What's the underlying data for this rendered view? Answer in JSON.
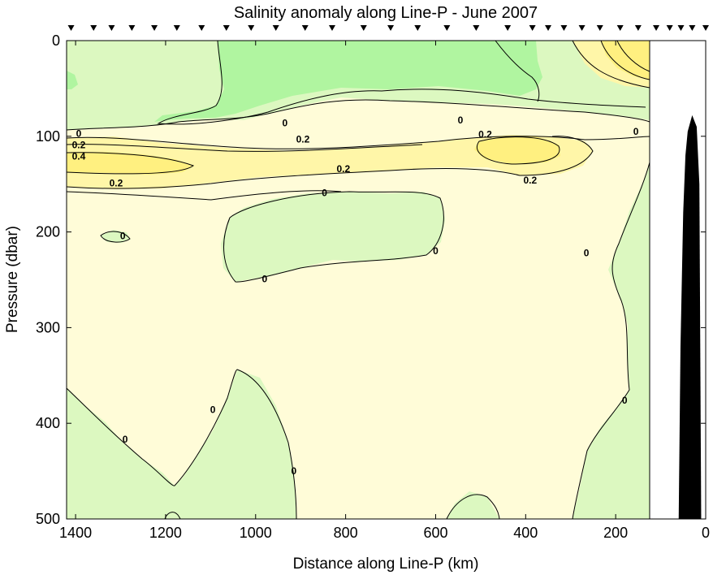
{
  "chart_data": {
    "type": "contour",
    "title": "Salinity anomaly along Line-P - June 2007",
    "xlabel": "Distance along Line-P (km)",
    "ylabel": "Pressure (dbar)",
    "xlim": [
      1420,
      0
    ],
    "ylim": [
      500,
      0
    ],
    "x_ticks": [
      "1400",
      "1200",
      "1000",
      "800",
      "600",
      "400",
      "200",
      "0"
    ],
    "y_ticks": [
      "0",
      "100",
      "200",
      "300",
      "400",
      "500"
    ],
    "x_tick_values": [
      1400,
      1200,
      1000,
      800,
      600,
      400,
      200,
      0
    ],
    "y_tick_values": [
      0,
      100,
      200,
      300,
      400,
      500
    ],
    "station_markers_km": [
      1410,
      1360,
      1320,
      1275,
      1225,
      1175,
      1120,
      1065,
      1010,
      955,
      890,
      830,
      760,
      700,
      640,
      575,
      510,
      440,
      385,
      350,
      315,
      275,
      235,
      190,
      150,
      110,
      80,
      55,
      30,
      0
    ],
    "data_coverage_limit_km": 125,
    "bathymetry": {
      "fill": "black",
      "depths": [
        [
          60,
          500
        ],
        [
          56,
          320
        ],
        [
          50,
          180
        ],
        [
          45,
          120
        ],
        [
          40,
          95
        ],
        [
          30,
          78
        ],
        [
          20,
          90
        ],
        [
          14,
          150
        ],
        [
          10,
          500
        ]
      ]
    },
    "fill_colors": {
      "le_minus_0.2": "#b0f5a0",
      "minus_0.2_to_0": "#dcf8c0",
      "0_to_0.2": "#fffcd8",
      "0.2_to_0.4": "#fff6a8",
      "ge_0.4": "#fff080"
    },
    "contour_labels": [
      {
        "text": "0",
        "km": 1295,
        "dbar": 204
      },
      {
        "text": "0",
        "km": 1393,
        "dbar": 97
      },
      {
        "text": "0.2",
        "km": 1393,
        "dbar": 109
      },
      {
        "text": "0.4",
        "km": 1393,
        "dbar": 121
      },
      {
        "text": "0.2",
        "km": 1310,
        "dbar": 149
      },
      {
        "text": "0",
        "km": 935,
        "dbar": 86
      },
      {
        "text": "0.2",
        "km": 895,
        "dbar": 103
      },
      {
        "text": "0.2",
        "km": 805,
        "dbar": 134
      },
      {
        "text": "0",
        "km": 847,
        "dbar": 159
      },
      {
        "text": "0",
        "km": 545,
        "dbar": 83
      },
      {
        "text": "0.2",
        "km": 490,
        "dbar": 98
      },
      {
        "text": "0.2",
        "km": 390,
        "dbar": 146
      },
      {
        "text": "0",
        "km": 155,
        "dbar": 95
      },
      {
        "text": "0",
        "km": 600,
        "dbar": 220
      },
      {
        "text": "0",
        "km": 980,
        "dbar": 249
      },
      {
        "text": "0",
        "km": 265,
        "dbar": 222
      },
      {
        "text": "0",
        "km": 1290,
        "dbar": 417
      },
      {
        "text": "0",
        "km": 1095,
        "dbar": 386
      },
      {
        "text": "0",
        "km": 915,
        "dbar": 450
      },
      {
        "text": "0",
        "km": 180,
        "dbar": 376
      }
    ]
  }
}
